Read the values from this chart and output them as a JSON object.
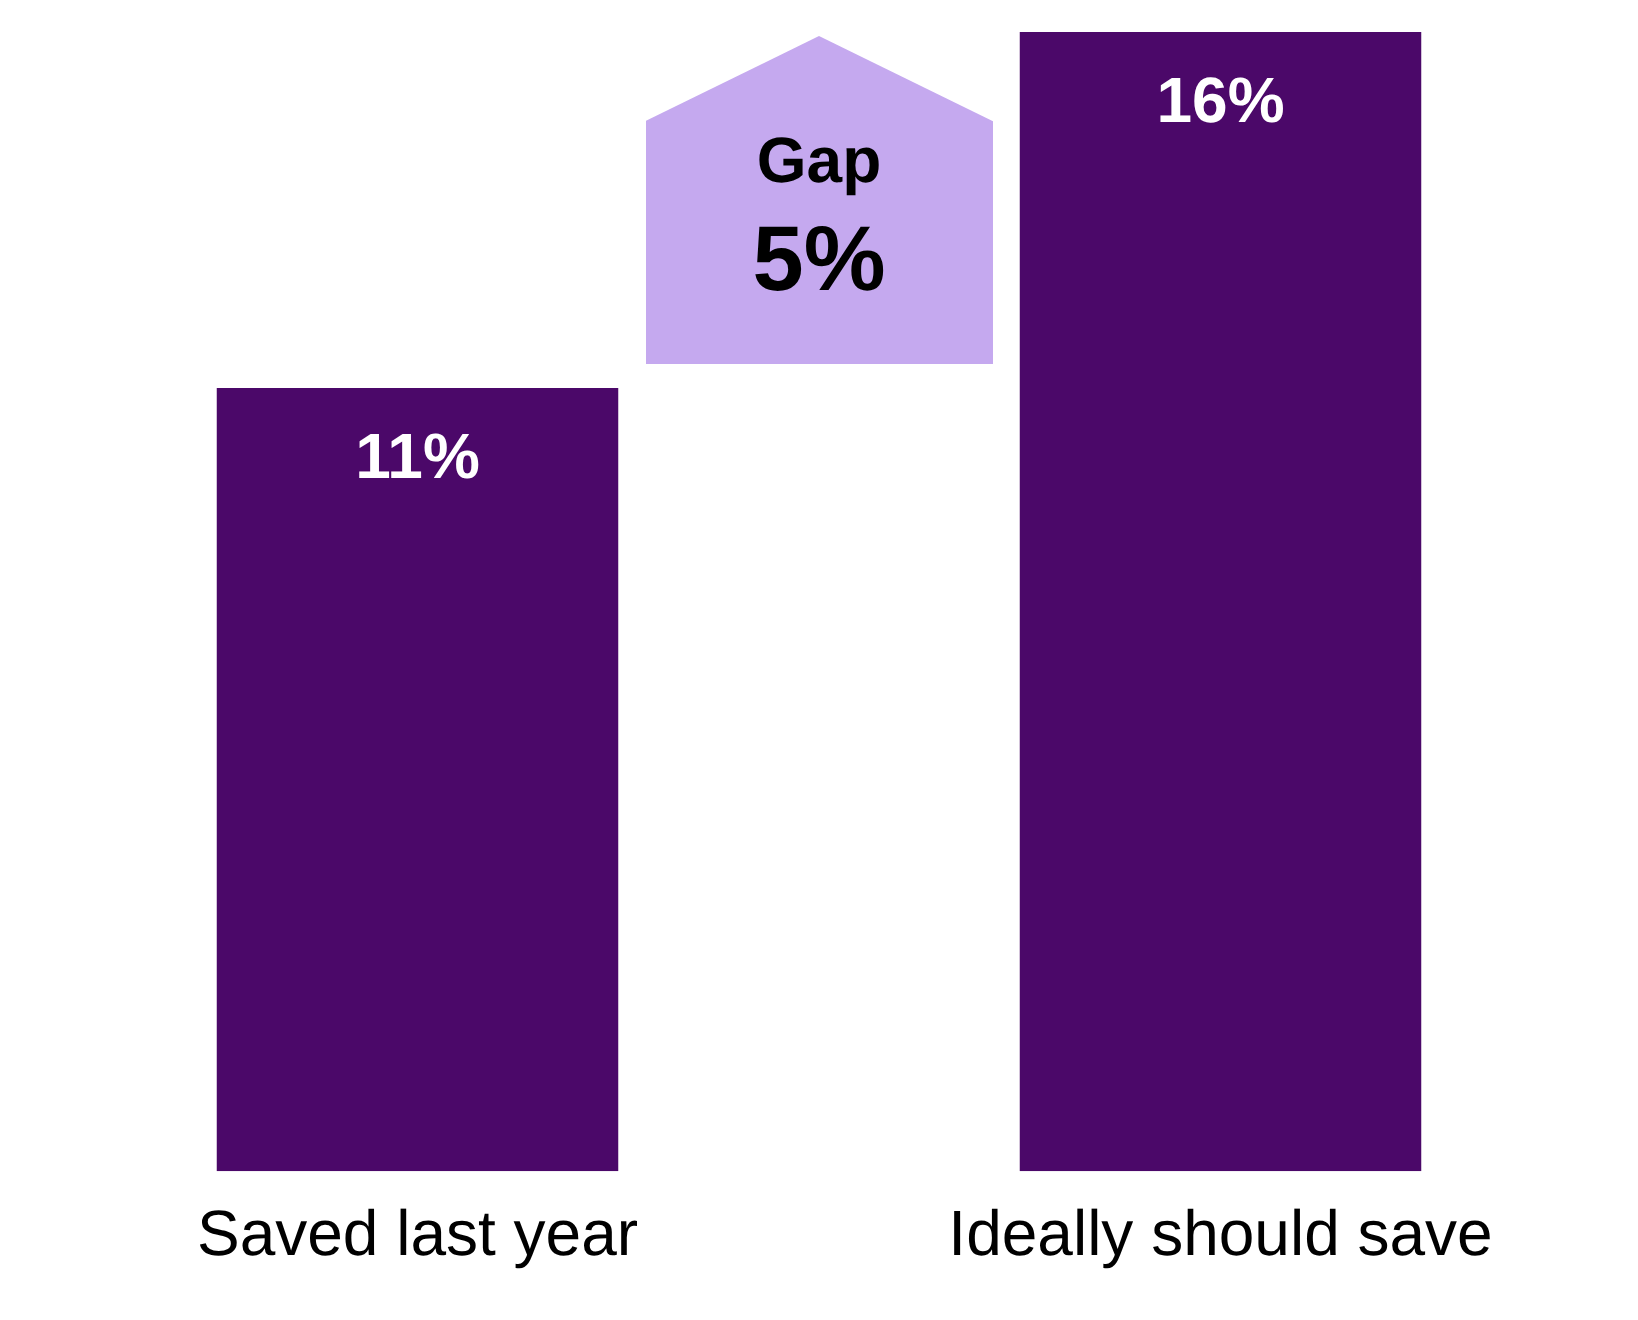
{
  "chart_data": {
    "type": "bar",
    "categories": [
      "Saved last year",
      "Ideally should save"
    ],
    "values": [
      11,
      16
    ],
    "value_labels": [
      "11%",
      "16%"
    ],
    "color": "#4b0869",
    "grid": false,
    "legend": false,
    "annotations": [
      "Gap",
      "5%"
    ]
  }
}
